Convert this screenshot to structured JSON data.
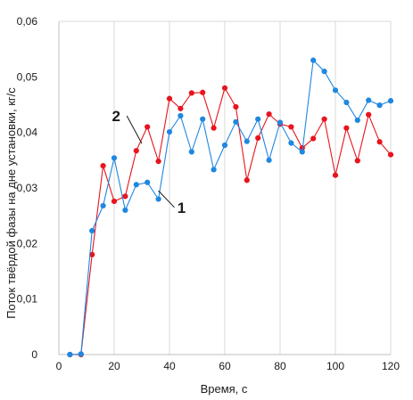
{
  "chart_data": {
    "type": "line",
    "xlabel": "Время, с",
    "ylabel": "Поток твёрдой фазы на дне установки, кг/с",
    "xlim": [
      0,
      120
    ],
    "ylim": [
      0,
      0.06
    ],
    "x_ticks": [
      0,
      20,
      40,
      60,
      80,
      100,
      120
    ],
    "x_tick_labels": [
      "0",
      "20",
      "40",
      "60",
      "80",
      "100",
      "120"
    ],
    "y_ticks": [
      0,
      0.01,
      0.02,
      0.03,
      0.04,
      0.05,
      0.06
    ],
    "y_tick_labels": [
      "0",
      "0,01",
      "0,02",
      "0,03",
      "0,04",
      "0,05",
      "0,06"
    ],
    "grid": {
      "horizontal": false,
      "vertical": true
    },
    "series": [
      {
        "name": "1",
        "color": "#1f87e0",
        "x": [
          4,
          8,
          12,
          16,
          20,
          24,
          28,
          32,
          36,
          40,
          44,
          48,
          52,
          56,
          60,
          64,
          68,
          72,
          76,
          80,
          84,
          88,
          92,
          96,
          100,
          104,
          108,
          112,
          116,
          120
        ],
        "y": [
          0.0,
          0.0001,
          0.0223,
          0.0268,
          0.0354,
          0.026,
          0.0306,
          0.031,
          0.028,
          0.0401,
          0.043,
          0.0365,
          0.0424,
          0.0333,
          0.0377,
          0.0419,
          0.0384,
          0.0424,
          0.035,
          0.0418,
          0.0381,
          0.0365,
          0.053,
          0.051,
          0.0476,
          0.0454,
          0.0422,
          0.0458,
          0.0449,
          0.0457
        ]
      },
      {
        "name": "2",
        "color": "#e8141e",
        "x": [
          4,
          8,
          12,
          16,
          20,
          24,
          28,
          32,
          36,
          40,
          44,
          48,
          52,
          56,
          60,
          64,
          68,
          72,
          76,
          80,
          84,
          88,
          92,
          96,
          100,
          104,
          108,
          112,
          116,
          120
        ],
        "y": [
          0.0,
          0.0,
          0.018,
          0.034,
          0.0276,
          0.0285,
          0.0367,
          0.041,
          0.0348,
          0.0461,
          0.0443,
          0.0471,
          0.0472,
          0.0408,
          0.048,
          0.0446,
          0.0314,
          0.039,
          0.0433,
          0.0415,
          0.041,
          0.0372,
          0.0389,
          0.0424,
          0.0323,
          0.0408,
          0.0349,
          0.0432,
          0.0383,
          0.036
        ]
      }
    ],
    "annotations": [
      {
        "text": "1",
        "series": "1",
        "point_x": 36,
        "point_y": 0.0295,
        "label_x": 45,
        "label_y": 0.0265
      },
      {
        "text": "2",
        "series": "2",
        "point_x": 30,
        "point_y": 0.038,
        "label_x": 22,
        "label_y": 0.043
      }
    ]
  }
}
